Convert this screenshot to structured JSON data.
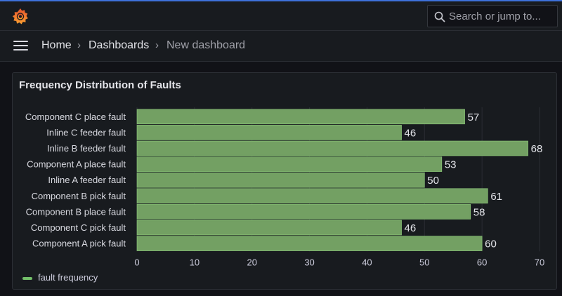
{
  "header": {
    "logo_icon": "grafana-logo-icon",
    "search_placeholder": "Search or jump to...",
    "search_icon": "search-icon"
  },
  "nav": {
    "menu_icon": "hamburger-menu-icon",
    "breadcrumbs": [
      "Home",
      "Dashboards",
      "New dashboard"
    ],
    "separator": "›"
  },
  "panel": {
    "title": "Frequency Distribution of Faults",
    "legend_label": "fault frequency"
  },
  "chart_data": {
    "type": "bar",
    "orientation": "horizontal",
    "categories": [
      "Component C place fault",
      "Inline C feeder fault",
      "Inline B feeder fault",
      "Component A place fault",
      "Inline A feeder fault",
      "Component B pick fault",
      "Component B place fault",
      "Component C pick fault",
      "Component A pick fault"
    ],
    "series": [
      {
        "name": "fault frequency",
        "values": [
          57,
          46,
          68,
          53,
          50,
          61,
          58,
          46,
          60
        ]
      }
    ],
    "xlim": [
      0,
      70
    ],
    "xticks": [
      0,
      10,
      20,
      30,
      40,
      50,
      60,
      70
    ],
    "grid": true,
    "legend": "bottom-left",
    "bar_color": "#73bf69"
  }
}
